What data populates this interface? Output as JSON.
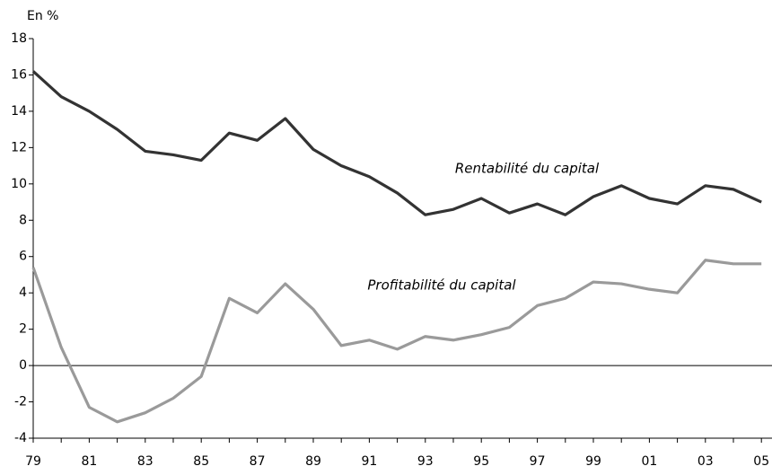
{
  "chart_data": {
    "type": "line",
    "unit_label": "En %",
    "categories": [
      "79",
      null,
      "81",
      null,
      "83",
      null,
      "85",
      null,
      "87",
      null,
      "89",
      null,
      "91",
      null,
      "93",
      null,
      "95",
      null,
      "97",
      null,
      "99",
      null,
      "01",
      null,
      "03",
      null,
      "05"
    ],
    "series": [
      {
        "name": "Rentabilité du capital",
        "color": "#333333",
        "values": [
          16.2,
          14.8,
          14.0,
          13.0,
          11.8,
          11.6,
          11.3,
          12.8,
          12.4,
          13.6,
          11.9,
          11.0,
          10.4,
          9.5,
          8.3,
          8.6,
          9.2,
          8.4,
          8.9,
          8.3,
          9.3,
          9.9,
          9.2,
          8.9,
          9.9,
          9.7,
          9.0
        ]
      },
      {
        "name": "Profitabilité du capital",
        "color": "#9a9a9a",
        "values": [
          5.4,
          1.0,
          -2.3,
          -3.1,
          -2.6,
          -1.8,
          -0.6,
          3.7,
          2.9,
          4.5,
          3.1,
          1.1,
          1.4,
          0.9,
          1.6,
          1.4,
          1.7,
          2.1,
          3.3,
          3.7,
          4.6,
          4.5,
          4.2,
          4.0,
          5.8,
          5.6,
          5.6
        ]
      }
    ],
    "ylim": [
      -4,
      18
    ],
    "yticks": [
      -4,
      -2,
      0,
      2,
      4,
      6,
      8,
      10,
      12,
      14,
      16,
      18
    ]
  }
}
